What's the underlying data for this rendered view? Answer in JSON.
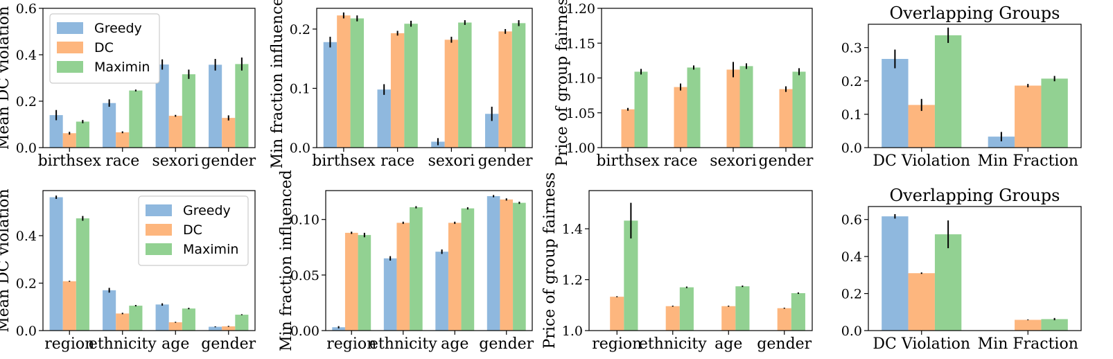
{
  "colors": {
    "Greedy": "#8fb8de",
    "DC": "#fdb67e",
    "Maximin": "#92d192"
  },
  "chart_data": [
    {
      "type": "bar",
      "id": "p1",
      "title": "",
      "xlabel": "",
      "ylabel": "Mean DC violation",
      "ylim": [
        0,
        0.6
      ],
      "yticks": [
        "0.0",
        "0.2",
        "0.4",
        "0.6"
      ],
      "categories": [
        "birthsex",
        "race",
        "sexori",
        "gender"
      ],
      "legend": {
        "position": "upper-left",
        "entries": [
          "Greedy",
          "DC",
          "Maximin"
        ]
      },
      "series": [
        {
          "name": "Greedy",
          "values": [
            0.14,
            0.192,
            0.358,
            0.357
          ],
          "errors": [
            0.022,
            0.016,
            0.022,
            0.025
          ]
        },
        {
          "name": "DC",
          "values": [
            0.062,
            0.066,
            0.137,
            0.128
          ],
          "errors": [
            0.006,
            0.004,
            0.004,
            0.011
          ]
        },
        {
          "name": "Maximin",
          "values": [
            0.112,
            0.246,
            0.316,
            0.36
          ],
          "errors": [
            0.007,
            0.004,
            0.02,
            0.028
          ]
        }
      ]
    },
    {
      "type": "bar",
      "id": "p2",
      "title": "",
      "xlabel": "",
      "ylabel": "Min fraction influenced",
      "ylim": [
        0,
        0.235
      ],
      "yticks": [
        "0.0",
        "0.1",
        "0.2"
      ],
      "categories": [
        "birthsex",
        "race",
        "sexori",
        "gender"
      ],
      "series": [
        {
          "name": "Greedy",
          "values": [
            0.178,
            0.098,
            0.01,
            0.057
          ],
          "errors": [
            0.009,
            0.009,
            0.006,
            0.012
          ]
        },
        {
          "name": "DC",
          "values": [
            0.223,
            0.193,
            0.182,
            0.196
          ],
          "errors": [
            0.005,
            0.004,
            0.005,
            0.004
          ]
        },
        {
          "name": "Maximin",
          "values": [
            0.218,
            0.209,
            0.211,
            0.21
          ],
          "errors": [
            0.005,
            0.005,
            0.004,
            0.005
          ]
        }
      ]
    },
    {
      "type": "bar",
      "id": "p3",
      "title": "",
      "xlabel": "",
      "ylabel": "Price of group fairness",
      "ylim": [
        1.0,
        1.2
      ],
      "yticks": [
        "1.00",
        "1.05",
        "1.10",
        "1.15",
        "1.20"
      ],
      "categories": [
        "birthsex",
        "race",
        "sexori",
        "gender"
      ],
      "series": [
        {
          "name": "Greedy",
          "values": [
            null,
            null,
            null,
            null
          ],
          "errors": [
            0,
            0,
            0,
            0
          ]
        },
        {
          "name": "DC",
          "values": [
            1.055,
            1.087,
            1.112,
            1.084
          ],
          "errors": [
            0.002,
            0.005,
            0.011,
            0.004
          ]
        },
        {
          "name": "Maximin",
          "values": [
            1.109,
            1.115,
            1.117,
            1.109
          ],
          "errors": [
            0.004,
            0.003,
            0.004,
            0.005
          ]
        }
      ]
    },
    {
      "type": "bar",
      "id": "p4",
      "title": "Overlapping Groups",
      "xlabel": "",
      "ylabel": "",
      "ylim": [
        0,
        0.37
      ],
      "yticks": [
        "0.0",
        "0.1",
        "0.2",
        "0.3"
      ],
      "categories": [
        "DC Violation",
        "Min Fraction"
      ],
      "series": [
        {
          "name": "Greedy",
          "values": [
            0.266,
            0.033
          ],
          "errors": [
            0.028,
            0.014
          ]
        },
        {
          "name": "DC",
          "values": [
            0.128,
            0.186
          ],
          "errors": [
            0.018,
            0.005
          ]
        },
        {
          "name": "Maximin",
          "values": [
            0.337,
            0.207
          ],
          "errors": [
            0.023,
            0.008
          ]
        }
      ]
    },
    {
      "type": "bar",
      "id": "p5",
      "title": "",
      "xlabel": "",
      "ylabel": "Mean DC violation",
      "ylim": [
        0,
        0.59
      ],
      "yticks": [
        "0.0",
        "0.2",
        "0.4"
      ],
      "categories": [
        "region",
        "ethnicity",
        "age",
        "gender"
      ],
      "legend": {
        "position": "upper-right",
        "entries": [
          "Greedy",
          "DC",
          "Maximin"
        ]
      },
      "series": [
        {
          "name": "Greedy",
          "values": [
            0.562,
            0.17,
            0.11,
            0.016
          ],
          "errors": [
            0.007,
            0.01,
            0.005,
            0.002
          ]
        },
        {
          "name": "DC",
          "values": [
            0.208,
            0.072,
            0.035,
            0.018
          ],
          "errors": [
            0.002,
            0.003,
            0.002,
            0.002
          ]
        },
        {
          "name": "Maximin",
          "values": [
            0.473,
            0.105,
            0.093,
            0.067
          ],
          "errors": [
            0.01,
            0.003,
            0.003,
            0.002
          ]
        }
      ]
    },
    {
      "type": "bar",
      "id": "p6",
      "title": "",
      "xlabel": "",
      "ylabel": "Min fraction influenced",
      "ylim": [
        0,
        0.126
      ],
      "yticks": [
        "0.00",
        "0.05",
        "0.10"
      ],
      "categories": [
        "region",
        "ethnicity",
        "age",
        "gender"
      ],
      "series": [
        {
          "name": "Greedy",
          "values": [
            0.003,
            0.065,
            0.071,
            0.121
          ],
          "errors": [
            0.001,
            0.002,
            0.002,
            0.001
          ]
        },
        {
          "name": "DC",
          "values": [
            0.088,
            0.097,
            0.097,
            0.118
          ],
          "errors": [
            0.001,
            0.001,
            0.001,
            0.001
          ]
        },
        {
          "name": "Maximin",
          "values": [
            0.086,
            0.111,
            0.11,
            0.115
          ],
          "errors": [
            0.002,
            0.001,
            0.001,
            0.001
          ]
        }
      ]
    },
    {
      "type": "bar",
      "id": "p7",
      "title": "",
      "xlabel": "",
      "ylabel": "Price of group fairness",
      "ylim": [
        1.0,
        1.55
      ],
      "yticks": [
        "1.0",
        "1.2",
        "1.4"
      ],
      "categories": [
        "region",
        "ethnicity",
        "age",
        "gender"
      ],
      "series": [
        {
          "name": "Greedy",
          "values": [
            null,
            null,
            null,
            null
          ],
          "errors": [
            0,
            0,
            0,
            0
          ]
        },
        {
          "name": "DC",
          "values": [
            1.133,
            1.096,
            1.096,
            1.088
          ],
          "errors": [
            0.002,
            0.002,
            0.002,
            0.002
          ]
        },
        {
          "name": "Maximin",
          "values": [
            1.432,
            1.17,
            1.174,
            1.147
          ],
          "errors": [
            0.07,
            0.003,
            0.003,
            0.003
          ]
        }
      ]
    },
    {
      "type": "bar",
      "id": "p8",
      "title": "Overlapping Groups",
      "xlabel": "",
      "ylabel": "",
      "ylim": [
        0,
        0.67
      ],
      "yticks": [
        "0.0",
        "0.2",
        "0.4",
        "0.6"
      ],
      "categories": [
        "DC Violation",
        "Min Fraction"
      ],
      "series": [
        {
          "name": "Greedy",
          "values": [
            0.617,
            null
          ],
          "errors": [
            0.012,
            0
          ]
        },
        {
          "name": "DC",
          "values": [
            0.31,
            0.058
          ],
          "errors": [
            0.004,
            0.002
          ]
        },
        {
          "name": "Maximin",
          "values": [
            0.52,
            0.062
          ],
          "errors": [
            0.075,
            0.006
          ]
        }
      ]
    }
  ]
}
